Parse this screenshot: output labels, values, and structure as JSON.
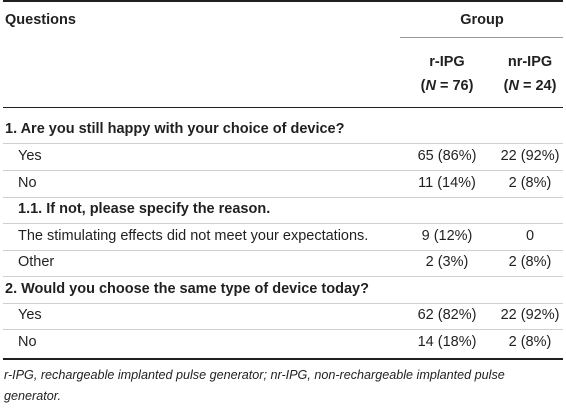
{
  "header": {
    "questions": "Questions",
    "group": "Group",
    "col1_name": "r-IPG",
    "col2_name": "nr-IPG",
    "col1_n_open": "(",
    "col1_n_label": "N",
    "col1_n_value": " = 76)",
    "col2_n_open": "(",
    "col2_n_label": "N",
    "col2_n_value": " = 24)"
  },
  "rows": [
    {
      "label": "1. Are you still happy with your choice of device?",
      "v1": "",
      "v2": ""
    },
    {
      "label": "Yes",
      "v1": "65 (86%)",
      "v2": "22 (92%)"
    },
    {
      "label": "No",
      "v1": "11 (14%)",
      "v2": "2 (8%)"
    },
    {
      "label": "1.1. If not, please specify the reason.",
      "v1": "",
      "v2": ""
    },
    {
      "label": "The stimulating effects did not meet your expectations.",
      "v1": "9 (12%)",
      "v2": "0"
    },
    {
      "label": "Other",
      "v1": "2 (3%)",
      "v2": "2 (8%)"
    },
    {
      "label": "2. Would you choose the same type of device today?",
      "v1": "",
      "v2": ""
    },
    {
      "label": "Yes",
      "v1": "62 (82%)",
      "v2": "22 (92%)"
    },
    {
      "label": "No",
      "v1": "14 (18%)",
      "v2": "2 (8%)"
    }
  ],
  "footnote": "r-IPG, rechargeable implanted pulse generator; nr-IPG, non-rechargeable implanted pulse generator."
}
